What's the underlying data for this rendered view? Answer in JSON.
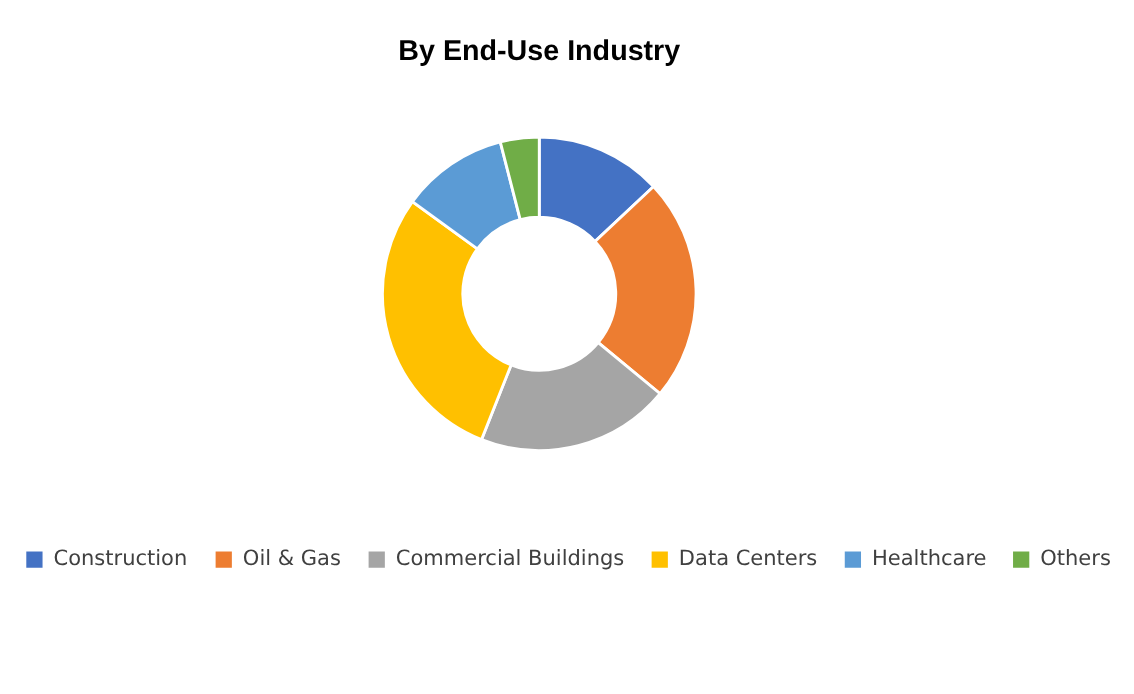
{
  "chart_data": {
    "type": "donut",
    "title": "By End-Use Industry",
    "categories": [
      "Construction",
      "Oil & Gas",
      "Commercial Buildings",
      "Data Centers",
      "Healthcare",
      "Others"
    ],
    "values": [
      13,
      23,
      20,
      29,
      11,
      4
    ],
    "colors": [
      "#4472c4",
      "#ed7d31",
      "#a5a5a5",
      "#ffc000",
      "#5b9bd5",
      "#70ad47"
    ],
    "legend": "bottom"
  }
}
